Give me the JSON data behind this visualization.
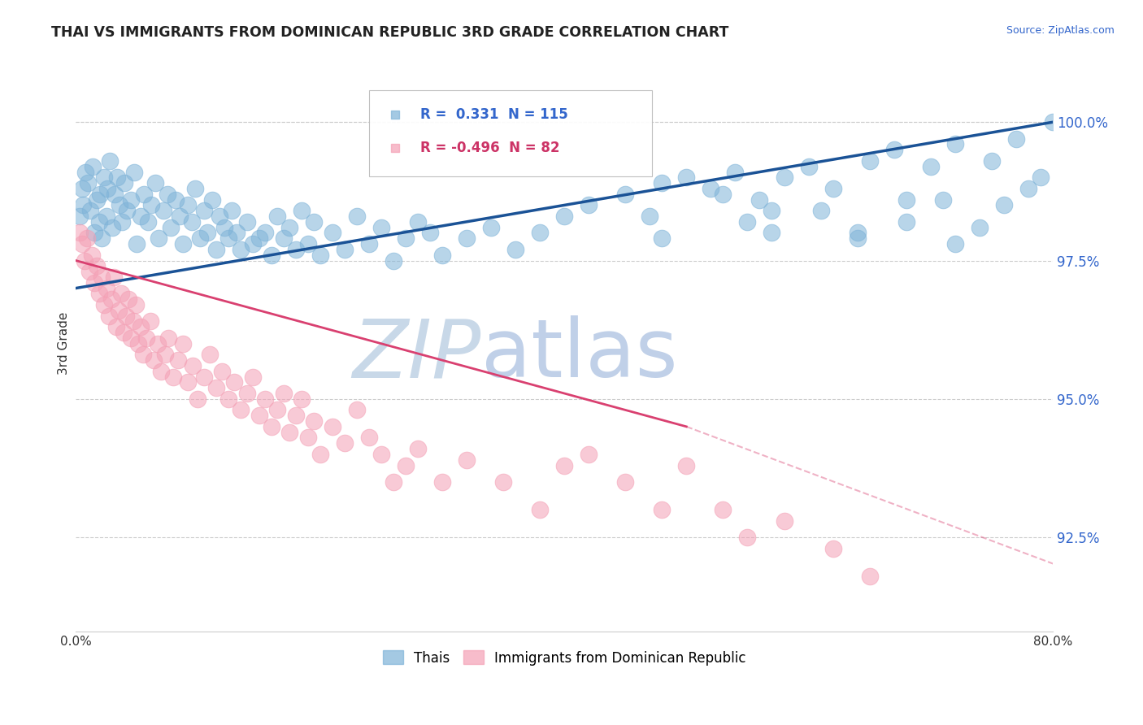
{
  "title": "THAI VS IMMIGRANTS FROM DOMINICAN REPUBLIC 3RD GRADE CORRELATION CHART",
  "source": "Source: ZipAtlas.com",
  "ylabel": "3rd Grade",
  "xlim": [
    0.0,
    80.0
  ],
  "ylim": [
    90.8,
    101.2
  ],
  "yticks": [
    92.5,
    95.0,
    97.5,
    100.0
  ],
  "ytick_labels": [
    "92.5%",
    "95.0%",
    "97.5%",
    "100.0%"
  ],
  "xticks": [
    0.0,
    20.0,
    40.0,
    60.0,
    80.0
  ],
  "xtick_labels": [
    "0.0%",
    "",
    "",
    "",
    "80.0%"
  ],
  "blue_R": 0.331,
  "blue_N": 115,
  "pink_R": -0.496,
  "pink_N": 82,
  "blue_color": "#7EB3D8",
  "pink_color": "#F4A0B5",
  "blue_line_color": "#1A5296",
  "pink_line_color": "#D94070",
  "legend_blue_label": "Thais",
  "legend_pink_label": "Immigrants from Dominican Republic",
  "blue_scatter_x": [
    0.3,
    0.5,
    0.6,
    0.8,
    1.0,
    1.2,
    1.4,
    1.5,
    1.7,
    1.9,
    2.0,
    2.1,
    2.3,
    2.5,
    2.6,
    2.8,
    3.0,
    3.2,
    3.4,
    3.6,
    3.8,
    4.0,
    4.2,
    4.5,
    4.8,
    5.0,
    5.3,
    5.6,
    5.9,
    6.2,
    6.5,
    6.8,
    7.2,
    7.5,
    7.8,
    8.2,
    8.5,
    8.8,
    9.2,
    9.5,
    9.8,
    10.2,
    10.5,
    10.8,
    11.2,
    11.5,
    11.8,
    12.2,
    12.5,
    12.8,
    13.2,
    13.5,
    14.0,
    14.5,
    15.0,
    15.5,
    16.0,
    16.5,
    17.0,
    17.5,
    18.0,
    18.5,
    19.0,
    19.5,
    20.0,
    21.0,
    22.0,
    23.0,
    24.0,
    25.0,
    26.0,
    27.0,
    28.0,
    29.0,
    30.0,
    32.0,
    34.0,
    36.0,
    38.0,
    40.0,
    42.0,
    45.0,
    48.0,
    50.0,
    52.0,
    54.0,
    56.0,
    58.0,
    60.0,
    62.0,
    65.0,
    67.0,
    70.0,
    72.0,
    75.0,
    77.0,
    80.0,
    55.0,
    48.0,
    57.0,
    64.0,
    68.0,
    72.0,
    74.0,
    76.0,
    78.0,
    79.0,
    47.0,
    53.0,
    57.0,
    61.0,
    64.0,
    68.0,
    71.0
  ],
  "blue_scatter_y": [
    98.3,
    98.8,
    98.5,
    99.1,
    98.9,
    98.4,
    99.2,
    98.0,
    98.6,
    98.2,
    98.7,
    97.9,
    99.0,
    98.3,
    98.8,
    99.3,
    98.1,
    98.7,
    99.0,
    98.5,
    98.2,
    98.9,
    98.4,
    98.6,
    99.1,
    97.8,
    98.3,
    98.7,
    98.2,
    98.5,
    98.9,
    97.9,
    98.4,
    98.7,
    98.1,
    98.6,
    98.3,
    97.8,
    98.5,
    98.2,
    98.8,
    97.9,
    98.4,
    98.0,
    98.6,
    97.7,
    98.3,
    98.1,
    97.9,
    98.4,
    98.0,
    97.7,
    98.2,
    97.8,
    97.9,
    98.0,
    97.6,
    98.3,
    97.9,
    98.1,
    97.7,
    98.4,
    97.8,
    98.2,
    97.6,
    98.0,
    97.7,
    98.3,
    97.8,
    98.1,
    97.5,
    97.9,
    98.2,
    98.0,
    97.6,
    97.9,
    98.1,
    97.7,
    98.0,
    98.3,
    98.5,
    98.7,
    98.9,
    99.0,
    98.8,
    99.1,
    98.6,
    99.0,
    99.2,
    98.8,
    99.3,
    99.5,
    99.2,
    99.6,
    99.3,
    99.7,
    100.0,
    98.2,
    97.9,
    98.4,
    98.0,
    98.6,
    97.8,
    98.1,
    98.5,
    98.8,
    99.0,
    98.3,
    98.7,
    98.0,
    98.4,
    97.9,
    98.2,
    98.6
  ],
  "pink_scatter_x": [
    0.3,
    0.5,
    0.7,
    0.9,
    1.1,
    1.3,
    1.5,
    1.7,
    1.9,
    2.1,
    2.3,
    2.5,
    2.7,
    2.9,
    3.1,
    3.3,
    3.5,
    3.7,
    3.9,
    4.1,
    4.3,
    4.5,
    4.7,
    4.9,
    5.1,
    5.3,
    5.5,
    5.8,
    6.1,
    6.4,
    6.7,
    7.0,
    7.3,
    7.6,
    8.0,
    8.4,
    8.8,
    9.2,
    9.6,
    10.0,
    10.5,
    11.0,
    11.5,
    12.0,
    12.5,
    13.0,
    13.5,
    14.0,
    14.5,
    15.0,
    15.5,
    16.0,
    16.5,
    17.0,
    17.5,
    18.0,
    18.5,
    19.0,
    19.5,
    20.0,
    21.0,
    22.0,
    23.0,
    24.0,
    25.0,
    26.0,
    27.0,
    28.0,
    30.0,
    32.0,
    35.0,
    38.0,
    40.0,
    42.0,
    45.0,
    48.0,
    50.0,
    53.0,
    55.0,
    58.0,
    62.0,
    65.0
  ],
  "pink_scatter_y": [
    98.0,
    97.8,
    97.5,
    97.9,
    97.3,
    97.6,
    97.1,
    97.4,
    96.9,
    97.2,
    96.7,
    97.0,
    96.5,
    96.8,
    97.2,
    96.3,
    96.6,
    96.9,
    96.2,
    96.5,
    96.8,
    96.1,
    96.4,
    96.7,
    96.0,
    96.3,
    95.8,
    96.1,
    96.4,
    95.7,
    96.0,
    95.5,
    95.8,
    96.1,
    95.4,
    95.7,
    96.0,
    95.3,
    95.6,
    95.0,
    95.4,
    95.8,
    95.2,
    95.5,
    95.0,
    95.3,
    94.8,
    95.1,
    95.4,
    94.7,
    95.0,
    94.5,
    94.8,
    95.1,
    94.4,
    94.7,
    95.0,
    94.3,
    94.6,
    94.0,
    94.5,
    94.2,
    94.8,
    94.3,
    94.0,
    93.5,
    93.8,
    94.1,
    93.5,
    93.9,
    93.5,
    93.0,
    93.8,
    94.0,
    93.5,
    93.0,
    93.8,
    93.0,
    92.5,
    92.8,
    92.3,
    91.8
  ],
  "pink_solid_end_x": 50.0,
  "background_color": "#FFFFFF",
  "grid_color": "#CCCCCC",
  "watermark_zip_color": "#C8D8E8",
  "watermark_atlas_color": "#C0D0E8"
}
